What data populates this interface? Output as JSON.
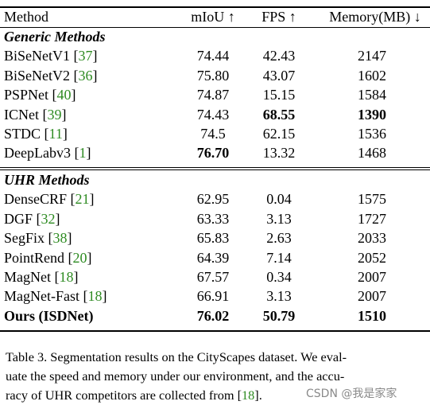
{
  "header": {
    "method": "Method",
    "miou": "mIoU ↑",
    "fps": "FPS ↑",
    "memory": "Memory(MB) ↓"
  },
  "sections": [
    {
      "title": "Generic Methods",
      "rows": [
        {
          "name": "BiSeNetV1",
          "ref": "37",
          "miou": "74.44",
          "fps": "42.43",
          "memory": "2147",
          "bold": []
        },
        {
          "name": "BiSeNetV2",
          "ref": "36",
          "miou": "75.80",
          "fps": "43.07",
          "memory": "1602",
          "bold": []
        },
        {
          "name": "PSPNet",
          "ref": "40",
          "miou": "74.87",
          "fps": "15.15",
          "memory": "1584",
          "bold": []
        },
        {
          "name": "ICNet",
          "ref": "39",
          "miou": "74.43",
          "fps": "68.55",
          "memory": "1390",
          "bold": [
            "fps",
            "memory"
          ]
        },
        {
          "name": "STDC",
          "ref": "11",
          "miou": "74.5",
          "fps": "62.15",
          "memory": "1536",
          "bold": []
        },
        {
          "name": "DeepLabv3",
          "ref": "1",
          "miou": "76.70",
          "fps": "13.32",
          "memory": "1468",
          "bold": [
            "miou"
          ]
        }
      ]
    },
    {
      "title": "UHR Methods",
      "rows": [
        {
          "name": "DenseCRF",
          "ref": "21",
          "miou": "62.95",
          "fps": "0.04",
          "memory": "1575",
          "bold": []
        },
        {
          "name": "DGF",
          "ref": "32",
          "miou": "63.33",
          "fps": "3.13",
          "memory": "1727",
          "bold": []
        },
        {
          "name": "SegFix",
          "ref": "38",
          "miou": "65.83",
          "fps": "2.63",
          "memory": "2033",
          "bold": []
        },
        {
          "name": "PointRend",
          "ref": "20",
          "miou": "64.39",
          "fps": "7.14",
          "memory": "2052",
          "bold": []
        },
        {
          "name": "MagNet",
          "ref": "18",
          "miou": "67.57",
          "fps": "0.34",
          "memory": "2007",
          "bold": []
        },
        {
          "name": "MagNet-Fast",
          "ref": "18",
          "miou": "66.91",
          "fps": "3.13",
          "memory": "2007",
          "bold": []
        },
        {
          "name": "Ours (ISDNet)",
          "ref": "",
          "miou": "76.02",
          "fps": "50.79",
          "memory": "1510",
          "bold": [
            "name",
            "miou",
            "fps",
            "memory"
          ]
        }
      ]
    }
  ],
  "caption": {
    "line1": "Table 3. Segmentation results on the CityScapes dataset. We eval-",
    "line2": "uate the speed and memory under our environment, and the accu-",
    "line3_pre": "racy of UHR competitors are collected from [",
    "line3_ref": "18",
    "line3_post": "]."
  },
  "watermark": "CSDN @我是家家",
  "colors": {
    "citation": "#2e8b22",
    "watermark": "#8a8a8a"
  }
}
